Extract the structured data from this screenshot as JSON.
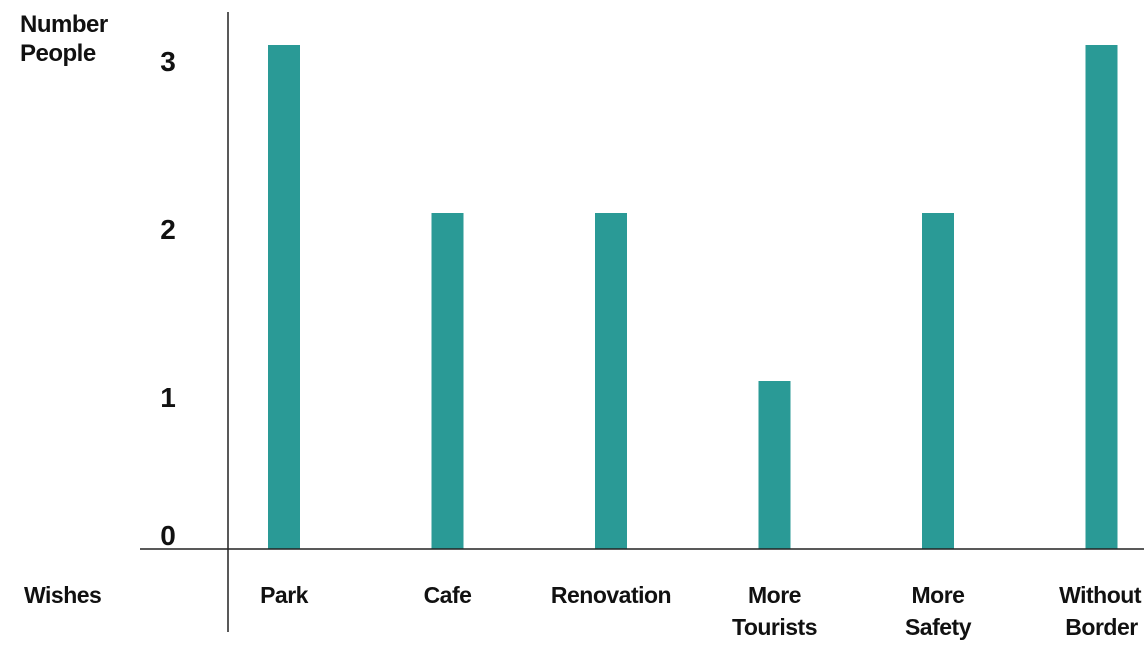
{
  "chart_data": {
    "type": "bar",
    "ylabel_lines": [
      "Number",
      "People"
    ],
    "xlabel": "Wishes",
    "y_ticks": [
      {
        "value": 0,
        "label": "0"
      },
      {
        "value": 1,
        "label": "1"
      },
      {
        "value": 2,
        "label": "2"
      },
      {
        "value": 3,
        "label": "3"
      }
    ],
    "categories": [
      {
        "lines": [
          "Park"
        ],
        "value": 3
      },
      {
        "lines": [
          "Cafe"
        ],
        "value": 2
      },
      {
        "lines": [
          "Renovation"
        ],
        "value": 2
      },
      {
        "lines": [
          "More",
          "Tourists"
        ],
        "value": 1
      },
      {
        "lines": [
          "More",
          "Safety"
        ],
        "value": 2
      },
      {
        "lines": [
          "Without",
          "Border"
        ],
        "value": 3
      }
    ],
    "bar_color": "#2a9a96",
    "axis_color": "#222222",
    "grid": false,
    "legend": "none"
  }
}
